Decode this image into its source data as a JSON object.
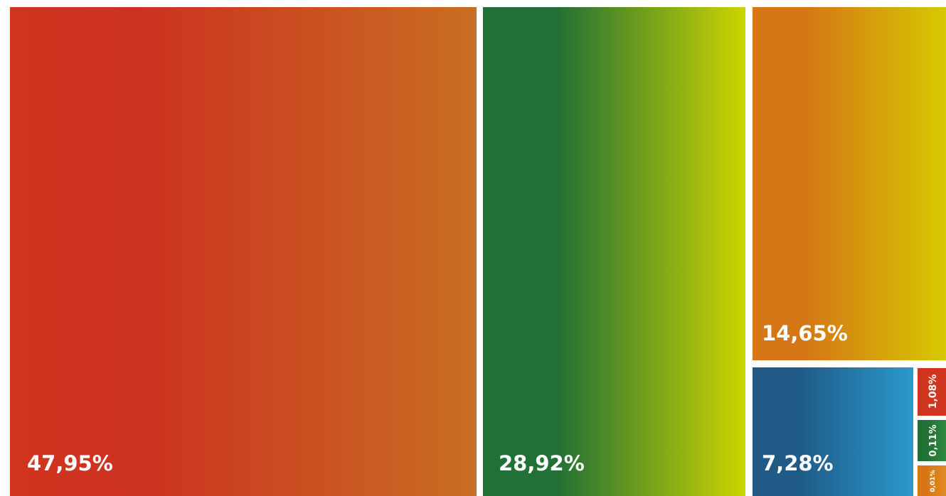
{
  "chart_data": {
    "type": "treemap",
    "title": "",
    "tiles": [
      {
        "label": "47,95%",
        "value": 47.95,
        "colors": [
          "#d0351f",
          "#cc3220",
          "#c96e22"
        ]
      },
      {
        "label": "28,92%",
        "value": 28.92,
        "colors": [
          "#217035",
          "#217035",
          "#cdd500"
        ]
      },
      {
        "label": "14,65%",
        "value": 14.65,
        "colors": [
          "#d57716",
          "#d57716",
          "#d6c900"
        ]
      },
      {
        "label": "7,28%",
        "value": 7.28,
        "colors": [
          "#205a86",
          "#205a86",
          "#2999cc"
        ]
      },
      {
        "label": "1,08%",
        "value": 1.08,
        "colors": [
          "#d0351f",
          "#d0351f",
          "#d0351f"
        ]
      },
      {
        "label": "0,11%",
        "value": 0.11,
        "colors": [
          "#217035",
          "#217035",
          "#2e8a3e"
        ]
      },
      {
        "label": "0,01%",
        "value": 0.01,
        "colors": [
          "#d57716",
          "#d57716",
          "#e08a22"
        ]
      }
    ]
  }
}
